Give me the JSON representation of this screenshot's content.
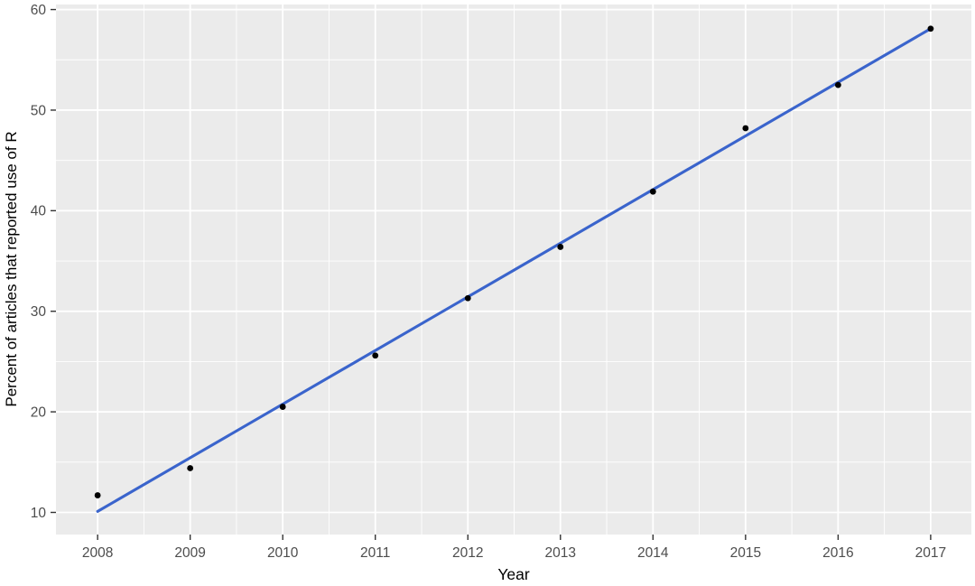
{
  "chart_data": {
    "type": "scatter",
    "title": "",
    "xlabel": "Year",
    "ylabel": "Percent of articles that reported use of R",
    "x": [
      2008,
      2009,
      2010,
      2011,
      2012,
      2013,
      2014,
      2015,
      2016,
      2017
    ],
    "series": [
      {
        "name": "percent-of-articles-reporting-R",
        "type": "scatter",
        "values": [
          11.7,
          14.4,
          20.5,
          25.6,
          31.3,
          36.4,
          41.9,
          48.2,
          52.5,
          58.1
        ]
      },
      {
        "name": "linear-trend-line",
        "type": "line",
        "x": [
          2008,
          2017
        ],
        "values": [
          10.1,
          58.1
        ]
      }
    ],
    "x_ticks": [
      2008,
      2009,
      2010,
      2011,
      2012,
      2013,
      2014,
      2015,
      2016,
      2017
    ],
    "y_ticks": [
      10,
      20,
      30,
      40,
      50,
      60
    ],
    "xlim": [
      2007.55,
      2017.44
    ],
    "ylim": [
      7.8,
      60.5
    ],
    "grid": "major-and-minor-white-on-gray",
    "legend": "none",
    "colors": {
      "point": "#000000",
      "trend_line": "#3A64CC",
      "panel_bg": "#EBEBEB",
      "grid_major": "#FFFFFF",
      "grid_minor": "#FFFFFF",
      "tick_mark": "#333333",
      "tick_label": "#4D4D4D",
      "axis_title": "#000000",
      "figure_bg": "#FFFFFF"
    }
  }
}
